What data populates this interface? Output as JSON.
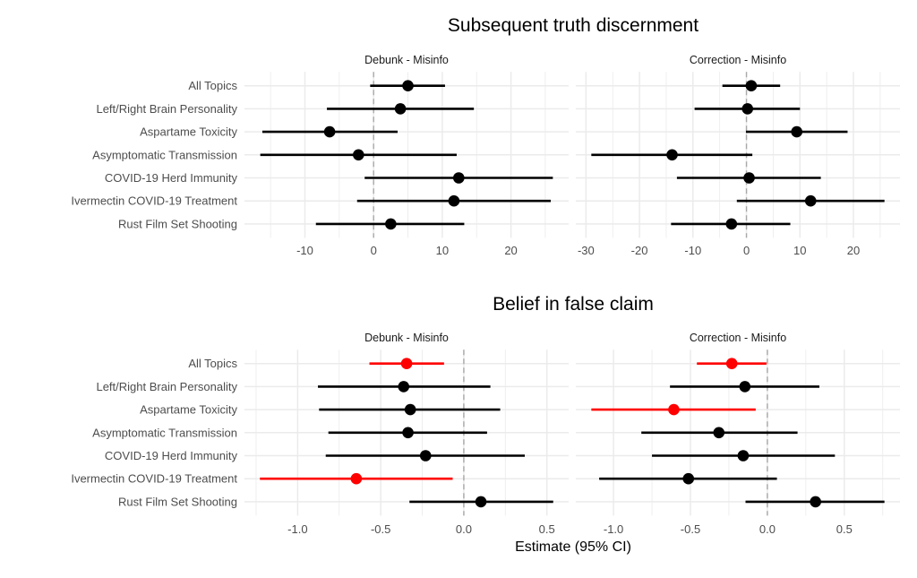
{
  "figure": {
    "group_titles": [
      "Subsequent truth discernment",
      "Belief in false claim"
    ],
    "xlabel": "Estimate (95% CI)",
    "colors": {
      "not_significant": "#000000",
      "significant": "#ff0000",
      "zero_line": "#a8a8a8",
      "grid": "#ebebeb"
    }
  },
  "chart_data": [
    {
      "type": "forest",
      "group": "Subsequent truth discernment",
      "title": "Debunk - Misinfo",
      "categories": [
        "All Topics",
        "Left/Right Brain Personality",
        "Aspartame Toxicity",
        "Asymptomatic Transmission",
        "COVID-19 Herd Immunity",
        "Ivermectin COVID-19 Treatment",
        "Rust Film Set Shooting"
      ],
      "estimate": [
        5.0,
        3.9,
        -6.4,
        -2.2,
        12.4,
        11.7,
        2.5
      ],
      "lower": [
        -0.5,
        -6.8,
        -16.2,
        -16.5,
        -1.3,
        -2.4,
        -8.4
      ],
      "upper": [
        10.4,
        14.6,
        3.5,
        12.1,
        26.1,
        25.8,
        13.2
      ],
      "significant": [
        false,
        false,
        false,
        false,
        false,
        false,
        false
      ],
      "xlim": [
        -18.8,
        28.4
      ],
      "xticks": [
        -10,
        0,
        10,
        20
      ],
      "xtick_labels": [
        "-10",
        "0",
        "10",
        "20"
      ],
      "grid": true
    },
    {
      "type": "forest",
      "group": "Subsequent truth discernment",
      "title": "Correction - Misinfo",
      "categories": [
        "All Topics",
        "Left/Right Brain Personality",
        "Aspartame Toxicity",
        "Asymptomatic Transmission",
        "COVID-19 Herd Immunity",
        "Ivermectin COVID-19 Treatment",
        "Rust Film Set Shooting"
      ],
      "estimate": [
        0.9,
        0.2,
        9.4,
        -13.9,
        0.5,
        12.0,
        -2.8
      ],
      "lower": [
        -4.5,
        -9.7,
        -0.1,
        -29.0,
        -13.0,
        -1.8,
        -14.1
      ],
      "upper": [
        6.3,
        10.0,
        18.9,
        1.1,
        13.9,
        25.8,
        8.2
      ],
      "significant": [
        false,
        false,
        false,
        false,
        false,
        false,
        false
      ],
      "xlim": [
        -31.9,
        28.7
      ],
      "xticks": [
        -30,
        -20,
        -10,
        0,
        10,
        20
      ],
      "xtick_labels": [
        "-30",
        "-20",
        "-10",
        "0",
        "10",
        "20"
      ],
      "grid": true
    },
    {
      "type": "forest",
      "group": "Belief in false claim",
      "title": "Debunk - Misinfo",
      "categories": [
        "All Topics",
        "Left/Right Brain Personality",
        "Aspartame Toxicity",
        "Asymptomatic Transmission",
        "COVID-19 Herd Immunity",
        "Ivermectin COVID-19 Treatment",
        "Rust Film Set Shooting"
      ],
      "estimate": [
        -0.344,
        -0.362,
        -0.322,
        -0.336,
        -0.23,
        -0.647,
        0.103
      ],
      "lower": [
        -0.568,
        -0.878,
        -0.871,
        -0.815,
        -0.831,
        -1.227,
        -0.327
      ],
      "upper": [
        -0.119,
        0.16,
        0.219,
        0.14,
        0.367,
        -0.067,
        0.538
      ],
      "significant": [
        true,
        false,
        false,
        false,
        false,
        true,
        false
      ],
      "xlim": [
        -1.32,
        0.631
      ],
      "xticks": [
        -1.0,
        -0.5,
        0.0,
        0.5
      ],
      "xtick_labels": [
        "-1.0",
        "-0.5",
        "0.0",
        "0.5"
      ],
      "grid": true
    },
    {
      "type": "forest",
      "group": "Belief in false claim",
      "title": "Correction - Misinfo",
      "categories": [
        "All Topics",
        "Left/Right Brain Personality",
        "Aspartame Toxicity",
        "Asymptomatic Transmission",
        "COVID-19 Herd Immunity",
        "Ivermectin COVID-19 Treatment",
        "Rust Film Set Shooting"
      ],
      "estimate": [
        -0.231,
        -0.146,
        -0.608,
        -0.315,
        -0.157,
        -0.513,
        0.313
      ],
      "lower": [
        -0.458,
        -0.633,
        -1.144,
        -0.819,
        -0.75,
        -1.093,
        -0.142
      ],
      "upper": [
        -0.006,
        0.338,
        -0.076,
        0.196,
        0.439,
        0.062,
        0.761
      ],
      "significant": [
        true,
        false,
        true,
        false,
        false,
        false,
        false
      ],
      "xlim": [
        -1.245,
        0.862
      ],
      "xticks": [
        -1.0,
        -0.5,
        0.0,
        0.5
      ],
      "xtick_labels": [
        "-1.0",
        "-0.5",
        "0.0",
        "0.5"
      ],
      "grid": true
    }
  ]
}
